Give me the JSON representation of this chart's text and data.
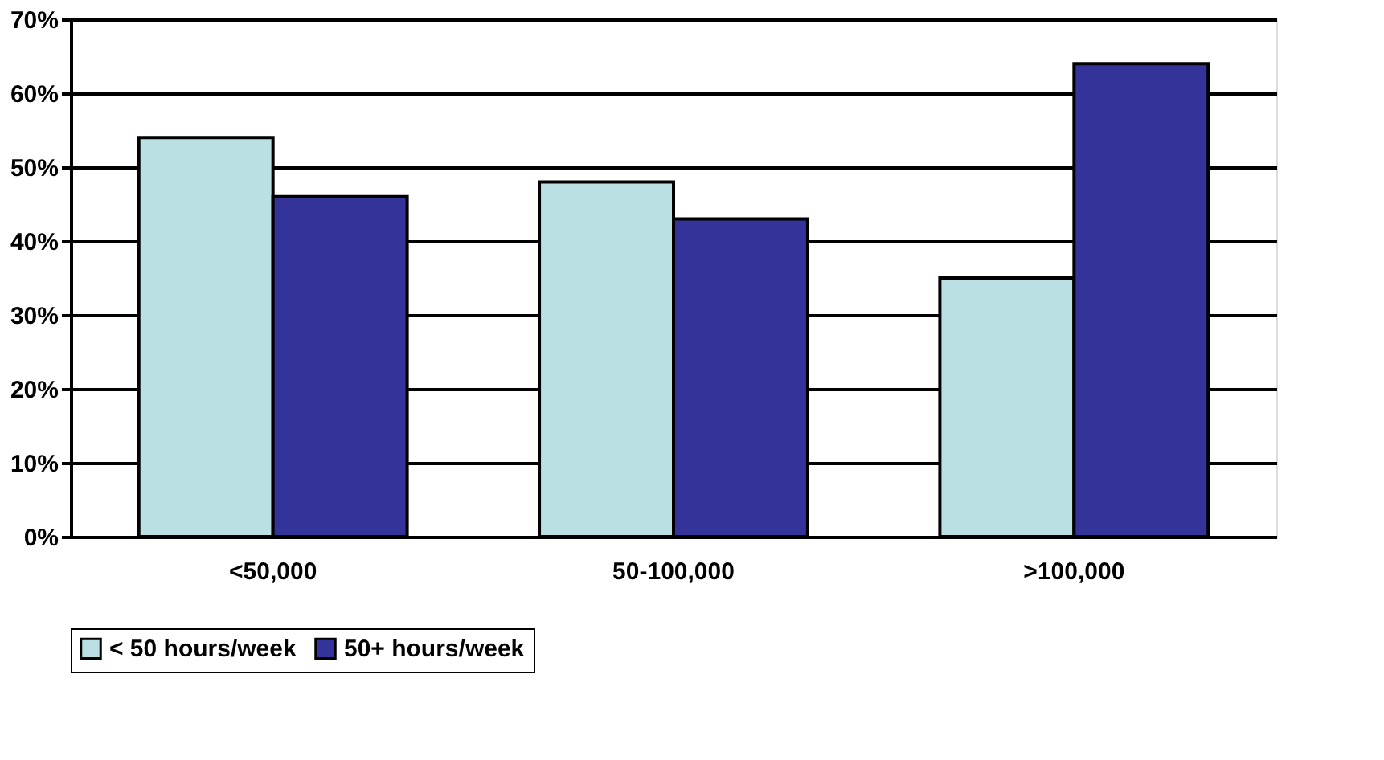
{
  "chart_data": {
    "type": "bar",
    "categories": [
      "<50,000",
      "50-100,000",
      ">100,000"
    ],
    "series": [
      {
        "name": "< 50 hours/week",
        "color": "#bbe0e3",
        "values": [
          54,
          48,
          35
        ]
      },
      {
        "name": "50+ hours/week",
        "color": "#333399",
        "values": [
          46,
          43,
          64
        ]
      }
    ],
    "ylim": [
      0,
      70
    ],
    "yticks": [
      {
        "value": 0,
        "label": "0%"
      },
      {
        "value": 10,
        "label": "10%"
      },
      {
        "value": 20,
        "label": "20%"
      },
      {
        "value": 30,
        "label": "30%"
      },
      {
        "value": 40,
        "label": "40%"
      },
      {
        "value": 50,
        "label": "50%"
      },
      {
        "value": 60,
        "label": "60%"
      },
      {
        "value": 70,
        "label": "70%"
      }
    ],
    "grid": "y",
    "legend": "bottom"
  }
}
